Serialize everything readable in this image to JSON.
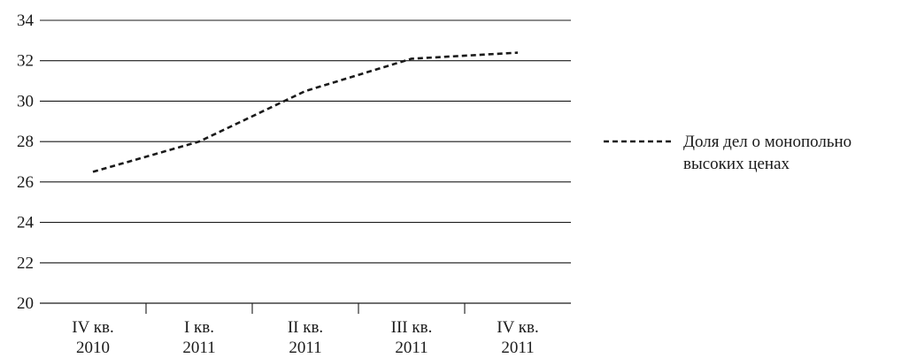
{
  "chart_data": {
    "type": "line",
    "title": "",
    "xlabel": "",
    "ylabel": "",
    "categories": [
      [
        "IV кв.",
        "2010"
      ],
      [
        "I кв.",
        "2011"
      ],
      [
        "II кв.",
        "2011"
      ],
      [
        "III кв.",
        "2011"
      ],
      [
        "IV кв.",
        "2011"
      ]
    ],
    "y_ticks": [
      "20",
      "22",
      "24",
      "26",
      "28",
      "30",
      "32",
      "34"
    ],
    "ylim": [
      20,
      34
    ],
    "grid": "horizontal",
    "legend_position": "right",
    "series": [
      {
        "name": "Доля дел о монопольно высоких ценах",
        "legend_lines": [
          "Доля дел о монопольно",
          "высоких ценах"
        ],
        "line_style": "dashed",
        "color": "#1a1a1a",
        "values": [
          26.5,
          28.0,
          30.5,
          32.1,
          32.4
        ]
      }
    ]
  }
}
